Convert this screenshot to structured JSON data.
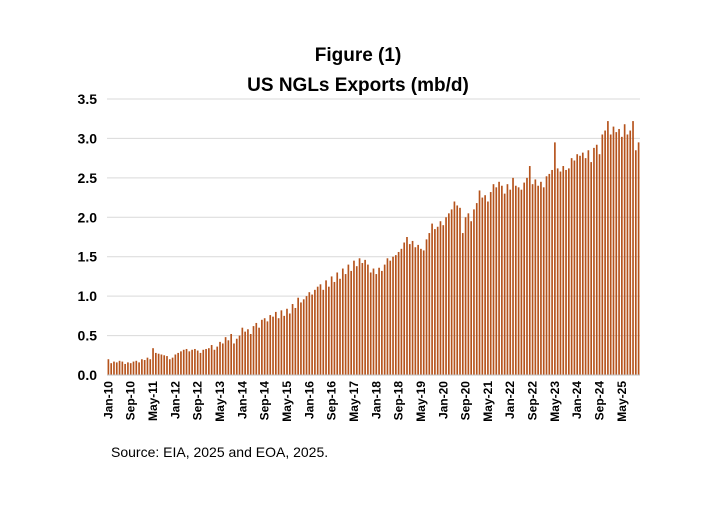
{
  "chart_data": {
    "type": "bar",
    "title": "Figure (1)",
    "subtitle": "US NGLs Exports (mb/d)",
    "xlabel": "",
    "ylabel": "",
    "ylim": [
      0,
      3.5
    ],
    "yticks": [
      "0.0",
      "0.5",
      "1.0",
      "1.5",
      "2.0",
      "2.5",
      "3.0",
      "3.5"
    ],
    "grid": true,
    "start_month": "Jan-10",
    "xtick_labels": [
      "Jan-10",
      "Sep-10",
      "May-11",
      "Jan-12",
      "Sep-12",
      "May-13",
      "Jan-14",
      "Sep-14",
      "May-15",
      "Jan-16",
      "Sep-16",
      "May-17",
      "Jan-18",
      "Sep-18",
      "May-19",
      "Jan-20",
      "Sep-20",
      "May-21",
      "Jan-22",
      "Sep-22",
      "May-23",
      "Jan-24",
      "Sep-24",
      "May-25"
    ],
    "bar_color": "#b5531c",
    "values": [
      0.2,
      0.15,
      0.17,
      0.16,
      0.18,
      0.17,
      0.14,
      0.16,
      0.15,
      0.17,
      0.18,
      0.16,
      0.2,
      0.19,
      0.22,
      0.2,
      0.34,
      0.28,
      0.27,
      0.26,
      0.25,
      0.24,
      0.2,
      0.22,
      0.26,
      0.28,
      0.3,
      0.32,
      0.33,
      0.3,
      0.32,
      0.33,
      0.31,
      0.28,
      0.32,
      0.33,
      0.34,
      0.38,
      0.32,
      0.36,
      0.42,
      0.4,
      0.48,
      0.44,
      0.52,
      0.4,
      0.46,
      0.5,
      0.6,
      0.55,
      0.58,
      0.52,
      0.62,
      0.66,
      0.6,
      0.7,
      0.72,
      0.68,
      0.76,
      0.74,
      0.8,
      0.72,
      0.82,
      0.75,
      0.84,
      0.78,
      0.9,
      0.85,
      0.98,
      0.92,
      0.96,
      1.0,
      1.05,
      1.02,
      1.08,
      1.12,
      1.15,
      1.08,
      1.2,
      1.12,
      1.25,
      1.18,
      1.3,
      1.22,
      1.35,
      1.28,
      1.4,
      1.32,
      1.45,
      1.38,
      1.48,
      1.42,
      1.46,
      1.4,
      1.3,
      1.35,
      1.28,
      1.36,
      1.32,
      1.4,
      1.48,
      1.45,
      1.5,
      1.52,
      1.56,
      1.6,
      1.68,
      1.75,
      1.66,
      1.7,
      1.62,
      1.65,
      1.6,
      1.58,
      1.72,
      1.8,
      1.92,
      1.85,
      1.88,
      1.95,
      1.9,
      2.0,
      2.05,
      2.1,
      2.2,
      2.15,
      2.12,
      1.8,
      2.0,
      2.05,
      1.95,
      2.1,
      2.18,
      2.34,
      2.25,
      2.28,
      2.2,
      2.32,
      2.42,
      2.38,
      2.45,
      2.4,
      2.3,
      2.42,
      2.35,
      2.5,
      2.4,
      2.38,
      2.35,
      2.44,
      2.5,
      2.65,
      2.42,
      2.48,
      2.4,
      2.45,
      2.38,
      2.52,
      2.55,
      2.6,
      2.95,
      2.62,
      2.58,
      2.65,
      2.6,
      2.62,
      2.75,
      2.72,
      2.8,
      2.78,
      2.82,
      2.75,
      2.85,
      2.7,
      2.88,
      2.92,
      2.8,
      3.05,
      3.1,
      3.22,
      3.05,
      3.15,
      3.08,
      3.12,
      3.02,
      3.18,
      3.05,
      3.1,
      3.22,
      2.85,
      2.95
    ]
  },
  "source_text": "Source: EIA, 2025 and EOA, 2025."
}
